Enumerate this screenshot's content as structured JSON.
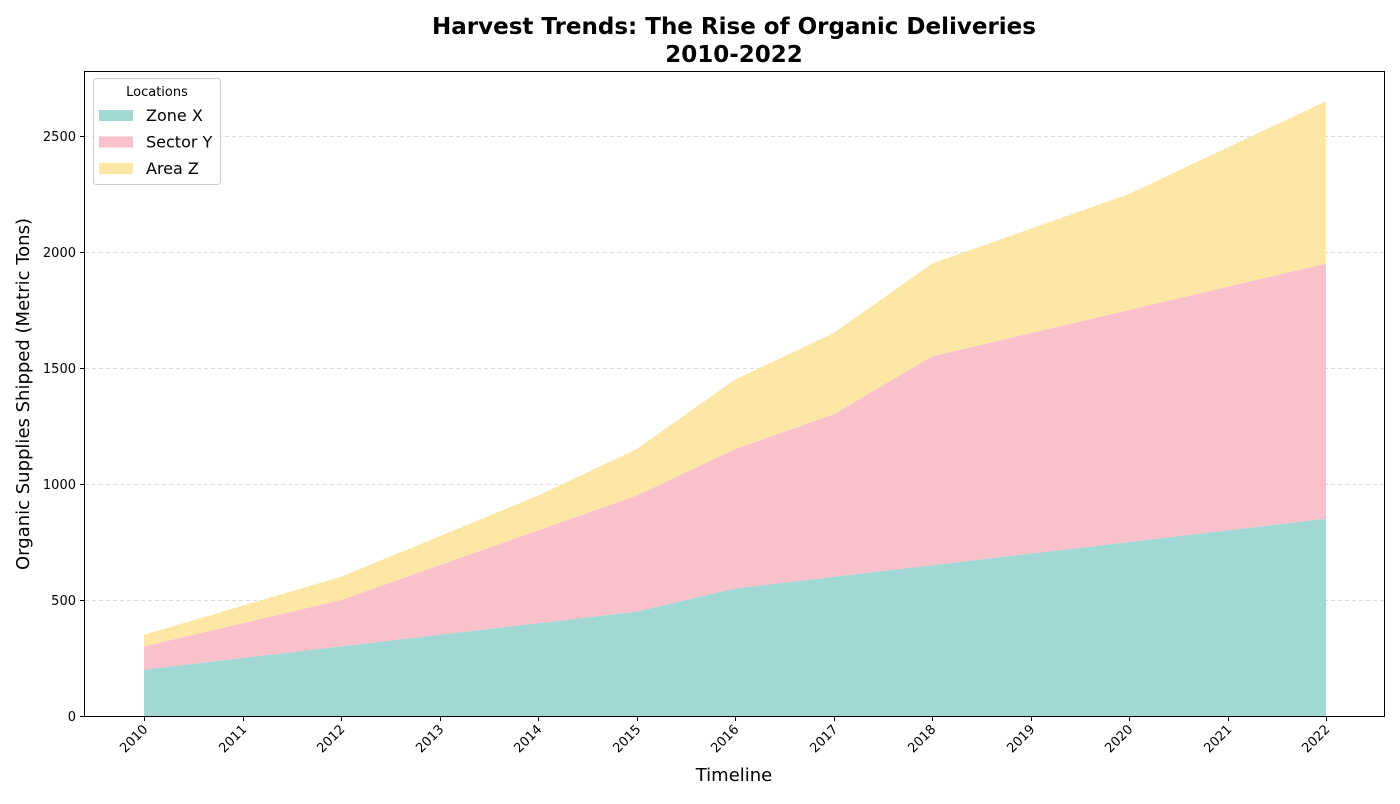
{
  "chart_data": {
    "type": "area",
    "stacked": true,
    "title": "Harvest Trends: The Rise of Organic Deliveries",
    "subtitle": "2010-2022",
    "xlabel": "Timeline",
    "ylabel": "Organic Supplies Shipped (Metric Tons)",
    "categories": [
      "2010",
      "2011",
      "2012",
      "2013",
      "2014",
      "2015",
      "2016",
      "2017",
      "2018",
      "2019",
      "2020",
      "2021",
      "2022"
    ],
    "series": [
      {
        "name": "Zone X",
        "color": "#a2d8d3",
        "values": [
          200,
          250,
          300,
          350,
          400,
          450,
          550,
          600,
          650,
          700,
          750,
          800,
          850
        ]
      },
      {
        "name": "Sector Y",
        "color": "#f9c1cc",
        "values": [
          100,
          150,
          200,
          300,
          400,
          500,
          600,
          700,
          900,
          950,
          1000,
          1050,
          1100
        ]
      },
      {
        "name": "Area Z",
        "color": "#fde7a5",
        "values": [
          50,
          75,
          100,
          125,
          150,
          200,
          300,
          350,
          400,
          450,
          500,
          600,
          700
        ]
      }
    ],
    "ylim": [
      0,
      2780
    ],
    "yticks": [
      0,
      500,
      1000,
      1500,
      2000,
      2500
    ],
    "grid": "y-dashed",
    "legend": {
      "title": "Locations",
      "position": "top-left"
    }
  }
}
